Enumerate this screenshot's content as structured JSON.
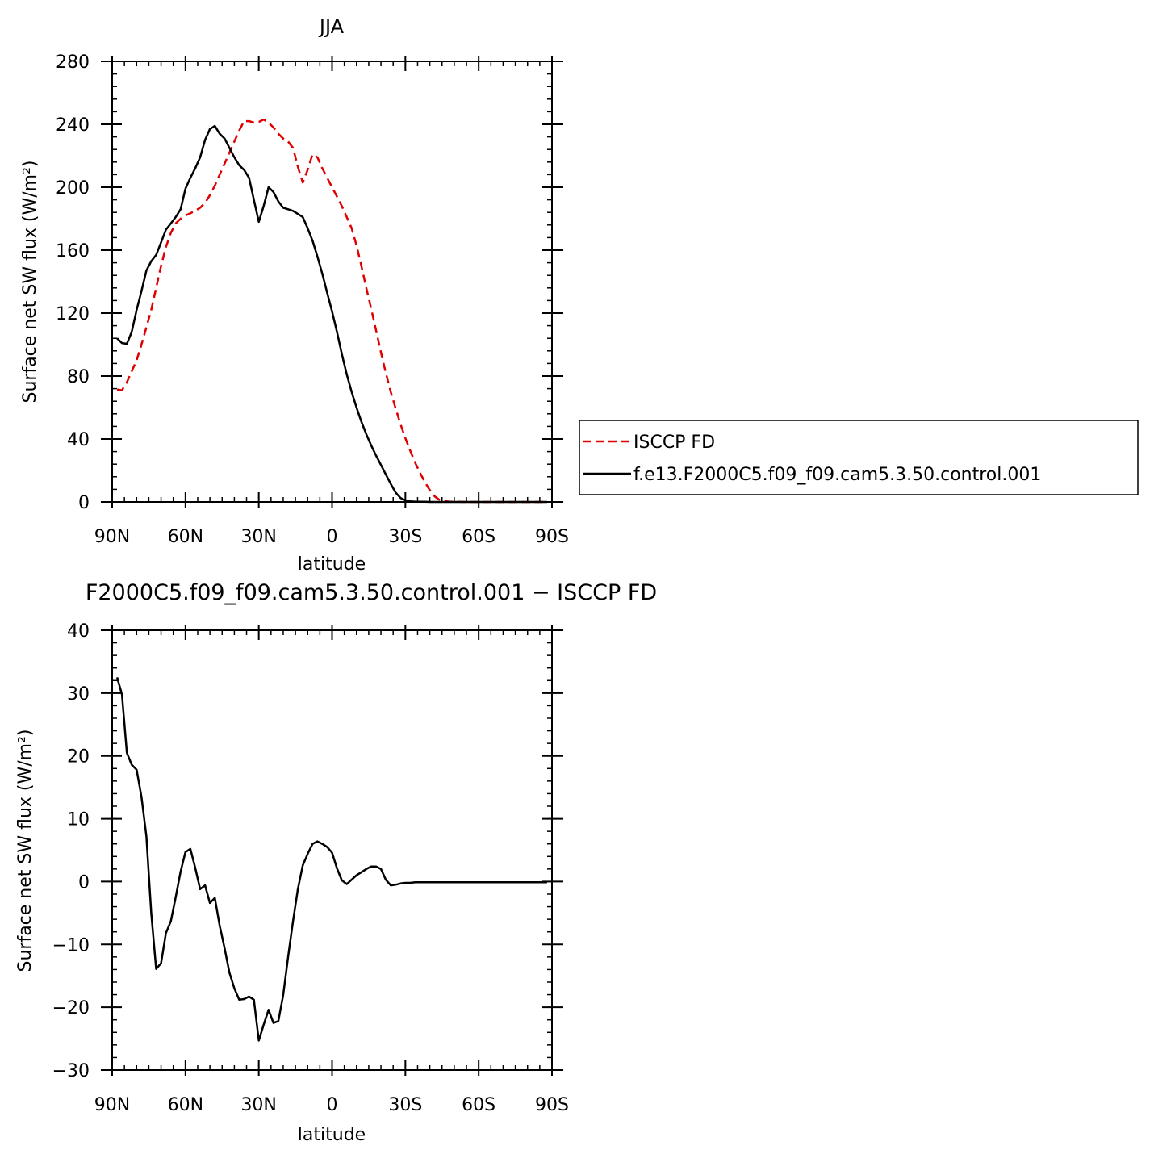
{
  "chart_data": [
    {
      "type": "line",
      "title": "JJA",
      "xlabel": "latitude",
      "ylabel": "Surface net SW flux (W/m²)",
      "xlim": [
        90,
        -90
      ],
      "ylim": [
        0,
        280
      ],
      "x_ticks": [
        90,
        60,
        30,
        0,
        -30,
        -60,
        -90
      ],
      "x_tick_labels": [
        "90N",
        "60N",
        "30N",
        "0",
        "30S",
        "60S",
        "90S"
      ],
      "y_ticks": [
        0,
        40,
        80,
        120,
        160,
        200,
        240,
        280
      ],
      "y_tick_labels": [
        "0",
        "40",
        "80",
        "120",
        "160",
        "200",
        "240",
        "280"
      ],
      "grid": false,
      "legend_position": "right",
      "x": [
        88,
        86,
        84,
        82,
        80,
        78,
        76,
        74,
        72,
        70,
        68,
        66,
        64,
        62,
        60,
        58,
        56,
        54,
        52,
        50,
        48,
        46,
        44,
        42,
        40,
        38,
        36,
        34,
        32,
        30,
        28,
        26,
        24,
        22,
        20,
        18,
        16,
        14,
        12,
        10,
        8,
        6,
        4,
        2,
        0,
        -2,
        -4,
        -6,
        -8,
        -10,
        -12,
        -14,
        -16,
        -18,
        -20,
        -22,
        -24,
        -26,
        -28,
        -30,
        -32,
        -34,
        -36,
        -38,
        -40,
        -42,
        -44,
        -46,
        -48,
        -50,
        -52,
        -54,
        -56,
        -58,
        -60,
        -62,
        -64,
        -66,
        -68,
        -70,
        -72,
        -74,
        -76,
        -78,
        -80,
        -82,
        -84,
        -86,
        -88
      ],
      "series": [
        {
          "name": "ISCCP FD",
          "color": "#e00000",
          "dash": "dashed",
          "values": [
            71.5,
            71.0,
            76.0,
            83.0,
            90.0,
            100.0,
            111.0,
            122.0,
            136.0,
            150.0,
            162.0,
            171.0,
            177.0,
            180.0,
            182.0,
            183.5,
            185.0,
            187.0,
            190.0,
            195.0,
            201.0,
            208.0,
            215.0,
            222.0,
            229.0,
            236.0,
            242.0,
            242.0,
            241.0,
            241.5,
            243.0,
            241.0,
            238.0,
            234.0,
            231.0,
            229.0,
            225.0,
            213.0,
            203.0,
            211.0,
            221.0,
            219.0,
            212.0,
            206.0,
            200.0,
            194.0,
            188.0,
            181.0,
            174.0,
            163.0,
            150.0,
            136.0,
            123.0,
            109.0,
            95.0,
            82.0,
            70.0,
            59.5,
            49.5,
            40.5,
            32.5,
            25.0,
            18.5,
            12.5,
            7.5,
            3.5,
            1.3,
            0.5,
            0.2,
            0.1,
            0.1,
            0.0,
            0.0,
            0.0,
            0.0,
            0.0,
            0.0,
            0.0,
            0.0,
            0.0,
            0.0,
            0.0,
            0.0,
            0.0,
            0.0,
            0.0,
            0.0,
            0.0,
            0.0
          ]
        },
        {
          "name": "f.e13.F2000C5.f09_f09.cam5.3.50.control.001",
          "color": "#000000",
          "dash": "solid",
          "values": [
            104.0,
            101.0,
            100.5,
            108.0,
            122.0,
            134.0,
            147.0,
            153.0,
            157.0,
            165.0,
            173.0,
            177.0,
            181.0,
            186.0,
            199.0,
            206.0,
            212.0,
            219.0,
            230.0,
            237.0,
            239.0,
            234.0,
            231.0,
            225.0,
            219.0,
            214.0,
            211.0,
            206.0,
            192.0,
            178.0,
            188.0,
            200.0,
            197.0,
            191.0,
            187.0,
            186.0,
            185.0,
            183.0,
            181.0,
            174.0,
            166.0,
            156.0,
            145.0,
            133.0,
            121.0,
            108.0,
            94.0,
            81.0,
            70.0,
            60.0,
            51.0,
            43.0,
            36.0,
            29.5,
            23.5,
            17.5,
            11.5,
            6.0,
            2.5,
            1.0,
            0.4,
            0.2,
            0.1,
            0.1,
            0.0,
            0.0,
            0.0,
            0.0,
            0.0,
            0.0,
            0.0,
            0.0,
            0.0,
            0.0,
            0.0,
            0.0,
            0.0,
            0.0,
            0.0,
            0.0,
            0.0,
            0.0,
            0.0,
            0.0,
            0.0,
            0.0,
            0.0,
            0.0,
            0.0
          ]
        }
      ]
    },
    {
      "type": "line",
      "title": "F2000C5.f09_f09.cam5.3.50.control.001 − ISCCP FD",
      "xlabel": "latitude",
      "ylabel": "Surface net SW flux (W/m²)",
      "xlim": [
        90,
        -90
      ],
      "ylim": [
        -30,
        40
      ],
      "x_ticks": [
        90,
        60,
        30,
        0,
        -30,
        -60,
        -90
      ],
      "x_tick_labels": [
        "90N",
        "60N",
        "30N",
        "0",
        "30S",
        "60S",
        "90S"
      ],
      "y_ticks": [
        -30,
        -20,
        -10,
        0,
        10,
        20,
        30,
        40
      ],
      "y_tick_labels": [
        "−30",
        "−20",
        "−10",
        "0",
        "10",
        "20",
        "30",
        "40"
      ],
      "grid": false,
      "x": [
        88,
        86,
        84,
        82,
        80,
        78,
        76,
        74,
        72,
        70,
        68,
        66,
        64,
        62,
        60,
        58,
        56,
        54,
        52,
        50,
        48,
        46,
        44,
        42,
        40,
        38,
        36,
        34,
        32,
        30,
        28,
        26,
        24,
        22,
        20,
        18,
        16,
        14,
        12,
        10,
        8,
        6,
        4,
        2,
        0,
        -2,
        -4,
        -6,
        -8,
        -10,
        -12,
        -14,
        -16,
        -18,
        -20,
        -22,
        -24,
        -26,
        -28,
        -30,
        -32,
        -34,
        -36,
        -38,
        -40,
        -42,
        -44,
        -46,
        -48,
        -50,
        -52,
        -54,
        -56,
        -58,
        -60,
        -62,
        -64,
        -66,
        -68,
        -70,
        -72,
        -74,
        -76,
        -78,
        -80,
        -82,
        -84,
        -86,
        -88
      ],
      "series": [
        {
          "color": "#000000",
          "values": [
            32.5,
            29.8,
            20.5,
            18.6,
            17.8,
            13.5,
            7.2,
            -5.0,
            -13.9,
            -13.0,
            -8.2,
            -6.3,
            -2.5,
            1.6,
            4.7,
            5.2,
            2.2,
            -1.2,
            -0.6,
            -3.4,
            -2.6,
            -7.0,
            -10.6,
            -14.5,
            -17.0,
            -18.8,
            -18.7,
            -18.3,
            -18.8,
            -25.3,
            -22.8,
            -20.4,
            -22.5,
            -22.2,
            -18.1,
            -12.0,
            -6.3,
            -1.2,
            2.6,
            4.4,
            6.0,
            6.4,
            6.0,
            5.5,
            4.6,
            2.1,
            0.2,
            -0.4,
            0.3,
            1.0,
            1.5,
            2.0,
            2.4,
            2.4,
            2.0,
            0.3,
            -0.6,
            -0.5,
            -0.3,
            -0.2,
            -0.2,
            -0.1,
            -0.1,
            -0.1,
            -0.1,
            -0.1,
            -0.1,
            -0.1,
            -0.1,
            -0.1,
            -0.1,
            -0.1,
            -0.1,
            -0.1,
            -0.1,
            -0.1,
            -0.1,
            -0.1,
            -0.1,
            -0.1,
            -0.1,
            -0.1,
            -0.1,
            -0.1,
            -0.1,
            -0.1,
            -0.1,
            -0.1,
            -0.1
          ]
        }
      ]
    }
  ]
}
